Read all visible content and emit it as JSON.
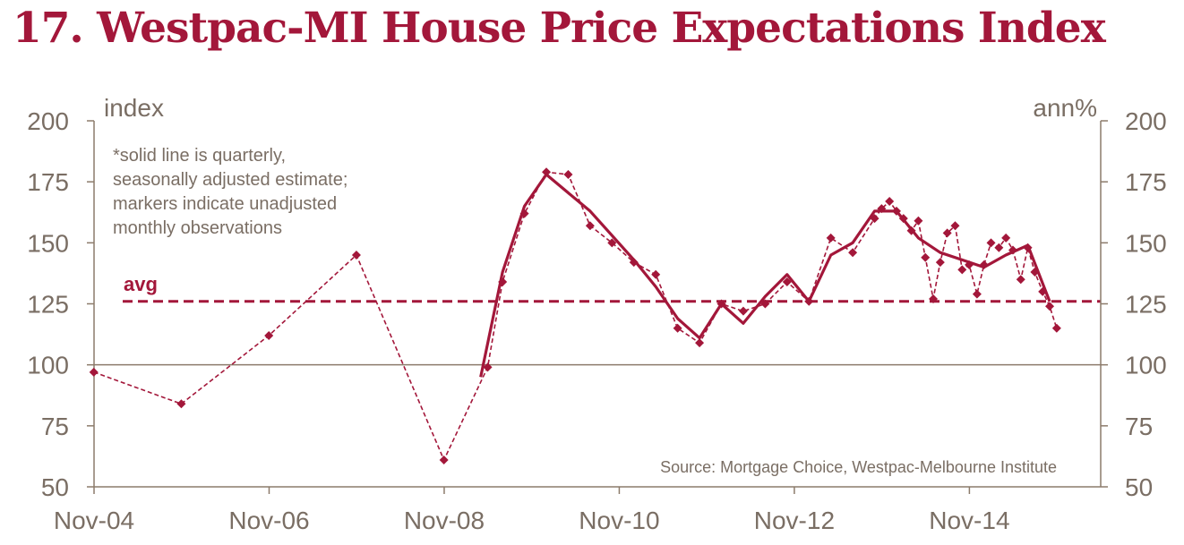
{
  "title": "17. Westpac-MI House Price Expectations Index",
  "colors": {
    "accent": "#a3173a",
    "axis": "#8c7b6b",
    "text": "#7a6e64"
  },
  "chart_data": {
    "type": "line",
    "title": "17. Westpac-MI House Price Expectations Index",
    "ylabel_left": "index",
    "ylabel_right": "ann%",
    "ylim": [
      50,
      200
    ],
    "yticks": [
      50,
      75,
      100,
      125,
      150,
      175,
      200
    ],
    "ytick_labels": [
      "50",
      "75",
      "100",
      "125",
      "150",
      "175",
      "200"
    ],
    "xlim": [
      2004.833,
      2016.333
    ],
    "xticks": [
      2004.833,
      2006.833,
      2008.833,
      2010.833,
      2012.833,
      2014.833
    ],
    "xtick_labels": [
      "Nov-04",
      "Nov-06",
      "Nov-08",
      "Nov-10",
      "Nov-12",
      "Nov-14"
    ],
    "note_lines": [
      "*solid line is quarterly,",
      "seasonally adjusted estimate;",
      "markers indicate unadjusted",
      "monthly observations"
    ],
    "avg_label": "avg",
    "avg_value": 126,
    "reference_line": 100,
    "source": "Source: Mortgage Choice, Westpac-Melbourne Institute",
    "series": [
      {
        "name": "monthly observations (unadjusted)",
        "style": "dashed-markers",
        "points": [
          [
            2004.83,
            97
          ],
          [
            2005.83,
            84
          ],
          [
            2006.83,
            112
          ],
          [
            2007.83,
            145
          ],
          [
            2008.83,
            61
          ],
          [
            2009.33,
            99
          ],
          [
            2009.5,
            134
          ],
          [
            2009.75,
            162
          ],
          [
            2010.0,
            179
          ],
          [
            2010.25,
            178
          ],
          [
            2010.5,
            157
          ],
          [
            2010.75,
            150
          ],
          [
            2011.0,
            142
          ],
          [
            2011.25,
            137
          ],
          [
            2011.5,
            115
          ],
          [
            2011.75,
            109
          ],
          [
            2012.0,
            125
          ],
          [
            2012.25,
            122
          ],
          [
            2012.5,
            125
          ],
          [
            2012.75,
            134
          ],
          [
            2013.0,
            126
          ],
          [
            2013.25,
            152
          ],
          [
            2013.5,
            146
          ],
          [
            2013.75,
            160
          ],
          [
            2013.83,
            164
          ],
          [
            2013.92,
            167
          ],
          [
            2014.0,
            163
          ],
          [
            2014.08,
            160
          ],
          [
            2014.17,
            155
          ],
          [
            2014.25,
            159
          ],
          [
            2014.33,
            144
          ],
          [
            2014.42,
            127
          ],
          [
            2014.5,
            142
          ],
          [
            2014.58,
            154
          ],
          [
            2014.67,
            157
          ],
          [
            2014.75,
            139
          ],
          [
            2014.83,
            141
          ],
          [
            2014.92,
            129
          ],
          [
            2015.0,
            141
          ],
          [
            2015.08,
            150
          ],
          [
            2015.17,
            148
          ],
          [
            2015.25,
            152
          ],
          [
            2015.33,
            147
          ],
          [
            2015.42,
            135
          ],
          [
            2015.5,
            148
          ],
          [
            2015.58,
            138
          ],
          [
            2015.67,
            130
          ],
          [
            2015.75,
            124
          ],
          [
            2015.83,
            115
          ]
        ]
      },
      {
        "name": "quarterly, seasonally adjusted estimate",
        "style": "solid",
        "points": [
          [
            2009.25,
            95
          ],
          [
            2009.5,
            138
          ],
          [
            2009.75,
            165
          ],
          [
            2010.0,
            178
          ],
          [
            2010.5,
            163
          ],
          [
            2011.0,
            143
          ],
          [
            2011.25,
            132
          ],
          [
            2011.5,
            119
          ],
          [
            2011.75,
            111
          ],
          [
            2012.0,
            125
          ],
          [
            2012.25,
            117
          ],
          [
            2012.5,
            128
          ],
          [
            2012.75,
            137
          ],
          [
            2013.0,
            126
          ],
          [
            2013.25,
            145
          ],
          [
            2013.5,
            150
          ],
          [
            2013.75,
            163
          ],
          [
            2014.0,
            163
          ],
          [
            2014.25,
            152
          ],
          [
            2014.5,
            146
          ],
          [
            2014.75,
            143
          ],
          [
            2015.0,
            140
          ],
          [
            2015.25,
            145
          ],
          [
            2015.5,
            149
          ],
          [
            2015.75,
            126
          ]
        ]
      }
    ]
  }
}
